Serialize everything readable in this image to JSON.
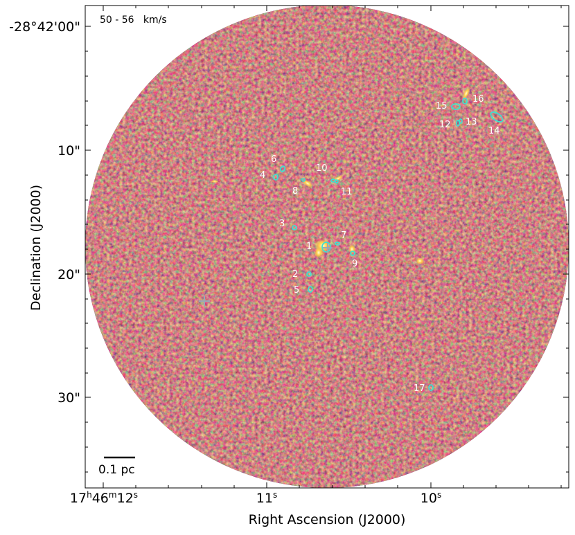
{
  "figure": {
    "velocity_range": "50 - 56   km/s",
    "scale_bar_label": "0.1 pc",
    "x_axis_label": "Right Ascension (J2000)",
    "y_axis_label": "Declination (J2000)",
    "x_ticks": [
      {
        "main": "17",
        "sup1": "h",
        "mid": "46",
        "sup2": "m",
        "end": "12",
        "sup3": "s"
      },
      {
        "main": "",
        "sup1": "",
        "mid": "",
        "sup2": "",
        "end": "11",
        "sup3": "s"
      },
      {
        "main": "",
        "sup1": "",
        "mid": "",
        "sup2": "",
        "end": "10",
        "sup3": "s"
      }
    ],
    "y_ticks": [
      "-28°42'00\"",
      "10\"",
      "20\"",
      "30\""
    ],
    "colors": {
      "map_dark": "#2a0e3f",
      "map_mid": "#b8442c",
      "map_bright": "#ffd44a",
      "contour": "#3fe0d0",
      "source_label": "#ffffff",
      "cross_marker": "#9aa8b8"
    },
    "sources": [
      "1",
      "2",
      "3",
      "4",
      "5",
      "6",
      "7",
      "8",
      "9",
      "10",
      "11",
      "12",
      "13",
      "14",
      "15",
      "16",
      "17"
    ]
  }
}
